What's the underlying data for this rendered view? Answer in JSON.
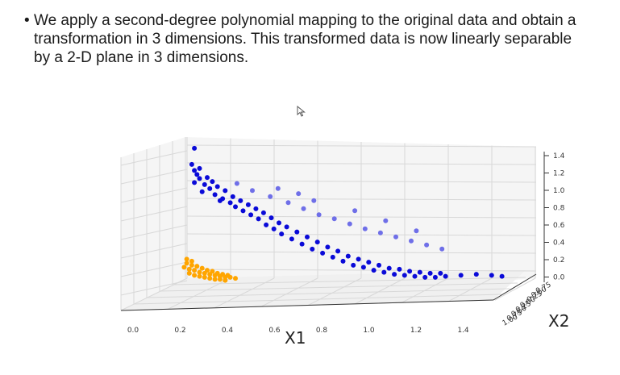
{
  "slide": {
    "bullet": "•",
    "text": "We apply a second-degree polynomial mapping to the original data and obtain a transformation in 3 dimensions. This transformed data is now linearly separable by a 2-D plane in 3 dimensions."
  },
  "icons": {
    "cursor": "mouse-pointer-icon"
  },
  "colors": {
    "class_a": "#0a0ad8",
    "class_a_light": "#6f6fe8",
    "class_b": "#ffa500",
    "grid": "#d8d8d8"
  },
  "chart_data": {
    "type": "scatter",
    "projection": "3d",
    "xlabel": "X1",
    "ylabel": "X2",
    "x_ticks": [
      "0.0",
      "0.2",
      "0.4",
      "0.6",
      "0.8",
      "1.0",
      "1.2",
      "1.4"
    ],
    "z_ticks": [
      "1.4",
      "1.2",
      "1.0",
      "0.8",
      "0.6",
      "0.4",
      "0.2",
      "0.0"
    ],
    "y_ticks_visible": [
      "1.00",
      "0.75",
      "0.50",
      "0.25",
      "0.00",
      "-0.25",
      "-0.50",
      "-0.75"
    ],
    "xlim": [
      0.0,
      1.4
    ],
    "zlim": [
      0.0,
      1.4
    ],
    "series": [
      {
        "color": "#0a0ad8",
        "points": [
          [
            0.22,
            0.6,
            1.38
          ],
          [
            0.21,
            0.6,
            1.22
          ],
          [
            0.22,
            0.6,
            1.16
          ],
          [
            0.23,
            0.6,
            1.12
          ],
          [
            0.24,
            0.6,
            1.08
          ],
          [
            0.22,
            0.6,
            1.04
          ],
          [
            0.26,
            0.6,
            1.02
          ],
          [
            0.28,
            0.6,
            0.98
          ],
          [
            0.25,
            0.6,
            0.95
          ],
          [
            0.3,
            0.6,
            0.92
          ],
          [
            0.33,
            0.6,
            0.88
          ],
          [
            0.36,
            0.6,
            0.84
          ],
          [
            0.32,
            0.6,
            0.86
          ],
          [
            0.38,
            0.6,
            0.8
          ],
          [
            0.41,
            0.6,
            0.76
          ],
          [
            0.44,
            0.6,
            0.72
          ],
          [
            0.47,
            0.6,
            0.68
          ],
          [
            0.5,
            0.6,
            0.62
          ],
          [
            0.53,
            0.6,
            0.58
          ],
          [
            0.56,
            0.6,
            0.53
          ],
          [
            0.6,
            0.6,
            0.48
          ],
          [
            0.64,
            0.6,
            0.43
          ],
          [
            0.68,
            0.6,
            0.38
          ],
          [
            0.72,
            0.6,
            0.34
          ],
          [
            0.76,
            0.6,
            0.3
          ],
          [
            0.8,
            0.6,
            0.26
          ],
          [
            0.84,
            0.6,
            0.22
          ],
          [
            0.88,
            0.6,
            0.2
          ],
          [
            0.92,
            0.6,
            0.17
          ],
          [
            0.96,
            0.6,
            0.15
          ],
          [
            1.0,
            0.6,
            0.13
          ],
          [
            1.04,
            0.6,
            0.12
          ],
          [
            1.08,
            0.6,
            0.11
          ],
          [
            1.12,
            0.6,
            0.1
          ],
          [
            1.16,
            0.6,
            0.1
          ],
          [
            1.2,
            0.6,
            0.11
          ],
          [
            1.26,
            0.6,
            0.12
          ],
          [
            1.32,
            0.6,
            0.13
          ],
          [
            1.38,
            0.6,
            0.12
          ],
          [
            1.42,
            0.6,
            0.11
          ],
          [
            0.24,
            0.6,
            1.18
          ],
          [
            0.27,
            0.6,
            1.09
          ],
          [
            0.29,
            0.6,
            1.05
          ],
          [
            0.31,
            0.6,
            1.0
          ],
          [
            0.34,
            0.6,
            0.96
          ],
          [
            0.37,
            0.6,
            0.9
          ],
          [
            0.4,
            0.6,
            0.86
          ],
          [
            0.43,
            0.6,
            0.82
          ],
          [
            0.46,
            0.6,
            0.78
          ],
          [
            0.49,
            0.6,
            0.74
          ],
          [
            0.52,
            0.6,
            0.69
          ],
          [
            0.55,
            0.6,
            0.64
          ],
          [
            0.58,
            0.6,
            0.6
          ],
          [
            0.62,
            0.6,
            0.55
          ],
          [
            0.66,
            0.6,
            0.5
          ],
          [
            0.7,
            0.6,
            0.45
          ],
          [
            0.74,
            0.6,
            0.4
          ],
          [
            0.78,
            0.6,
            0.36
          ],
          [
            0.82,
            0.6,
            0.31
          ],
          [
            0.86,
            0.6,
            0.28
          ],
          [
            0.9,
            0.6,
            0.25
          ],
          [
            0.94,
            0.6,
            0.22
          ],
          [
            0.98,
            0.6,
            0.19
          ],
          [
            1.02,
            0.6,
            0.18
          ],
          [
            1.06,
            0.6,
            0.16
          ],
          [
            1.1,
            0.6,
            0.15
          ],
          [
            1.14,
            0.6,
            0.14
          ],
          [
            1.18,
            0.6,
            0.14
          ]
        ]
      },
      {
        "color": "#6f6fe8",
        "points": [
          [
            0.42,
            0.2,
            1.05
          ],
          [
            0.48,
            0.2,
            0.98
          ],
          [
            0.55,
            0.2,
            0.92
          ],
          [
            0.62,
            0.2,
            0.86
          ],
          [
            0.68,
            0.2,
            0.8
          ],
          [
            0.74,
            0.2,
            0.74
          ],
          [
            0.8,
            0.2,
            0.7
          ],
          [
            0.86,
            0.2,
            0.65
          ],
          [
            0.92,
            0.2,
            0.6
          ],
          [
            0.98,
            0.2,
            0.56
          ],
          [
            1.04,
            0.2,
            0.52
          ],
          [
            1.1,
            0.2,
            0.48
          ],
          [
            1.16,
            0.2,
            0.44
          ],
          [
            1.22,
            0.2,
            0.4
          ],
          [
            0.58,
            0.2,
            1.0
          ],
          [
            0.66,
            0.2,
            0.95
          ],
          [
            0.72,
            0.2,
            0.88
          ],
          [
            0.88,
            0.2,
            0.78
          ],
          [
            1.0,
            0.2,
            0.68
          ],
          [
            1.12,
            0.2,
            0.58
          ]
        ]
      },
      {
        "color": "#ffa500",
        "points": [
          [
            0.18,
            0.6,
            0.2
          ],
          [
            0.2,
            0.6,
            0.18
          ],
          [
            0.22,
            0.6,
            0.17
          ],
          [
            0.24,
            0.6,
            0.15
          ],
          [
            0.26,
            0.6,
            0.14
          ],
          [
            0.28,
            0.6,
            0.13
          ],
          [
            0.3,
            0.6,
            0.12
          ],
          [
            0.32,
            0.6,
            0.11
          ],
          [
            0.34,
            0.6,
            0.1
          ],
          [
            0.36,
            0.6,
            0.1
          ],
          [
            0.38,
            0.6,
            0.09
          ],
          [
            0.19,
            0.6,
            0.24
          ],
          [
            0.21,
            0.6,
            0.22
          ],
          [
            0.23,
            0.6,
            0.21
          ],
          [
            0.25,
            0.6,
            0.19
          ],
          [
            0.27,
            0.6,
            0.17
          ],
          [
            0.29,
            0.6,
            0.16
          ],
          [
            0.31,
            0.6,
            0.14
          ],
          [
            0.33,
            0.6,
            0.13
          ],
          [
            0.35,
            0.6,
            0.12
          ],
          [
            0.2,
            0.6,
            0.14
          ],
          [
            0.22,
            0.6,
            0.12
          ],
          [
            0.24,
            0.6,
            0.11
          ],
          [
            0.26,
            0.6,
            0.1
          ],
          [
            0.28,
            0.6,
            0.09
          ],
          [
            0.3,
            0.6,
            0.08
          ],
          [
            0.32,
            0.6,
            0.08
          ],
          [
            0.34,
            0.6,
            0.07
          ],
          [
            0.19,
            0.6,
            0.28
          ],
          [
            0.21,
            0.6,
            0.26
          ]
        ]
      }
    ]
  }
}
